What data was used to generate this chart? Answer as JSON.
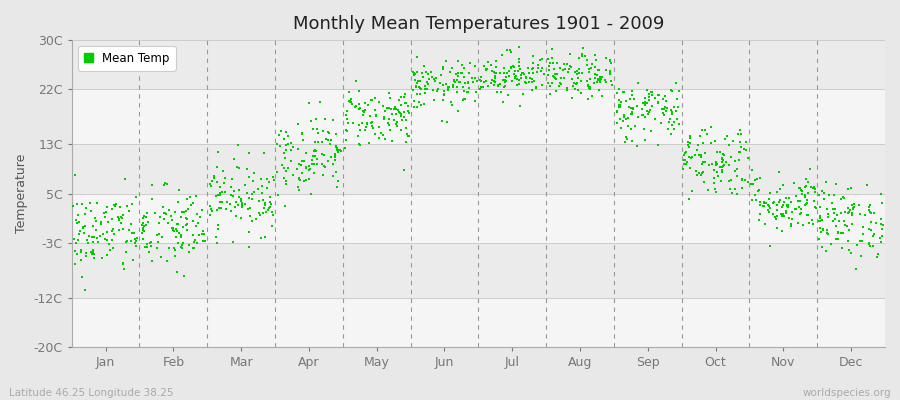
{
  "title": "Monthly Mean Temperatures 1901 - 2009",
  "ylabel": "Temperature",
  "xlabel_labels": [
    "Jan",
    "Feb",
    "Mar",
    "Apr",
    "May",
    "Jun",
    "Jul",
    "Aug",
    "Sep",
    "Oct",
    "Nov",
    "Dec"
  ],
  "ytick_labels": [
    "30C",
    "22C",
    "13C",
    "5C",
    "-3C",
    "-12C",
    "-20C"
  ],
  "ytick_values": [
    30,
    22,
    13,
    5,
    -3,
    -12,
    -20
  ],
  "ylim": [
    -20,
    30
  ],
  "background_color": "#e8e8e8",
  "plot_bg_color": "#ffffff",
  "dot_color": "#00cc00",
  "dot_size": 3,
  "legend_label": "Mean Temp",
  "subtitle_left": "Latitude 46.25 Longitude 38.25",
  "subtitle_right": "worldspecies.org",
  "seed": 42,
  "monthly_means": [
    -1.5,
    -1.0,
    4.5,
    11.5,
    17.5,
    22.5,
    24.5,
    24.0,
    18.5,
    10.5,
    3.5,
    0.5
  ],
  "monthly_stds": [
    3.5,
    3.5,
    3.0,
    3.2,
    2.5,
    2.0,
    1.8,
    1.8,
    2.5,
    3.0,
    2.5,
    3.0
  ],
  "n_years": 109,
  "band_colors": [
    "#ebebeb",
    "#f5f5f5"
  ],
  "dashed_color": "#999999",
  "grid_color": "#cccccc"
}
